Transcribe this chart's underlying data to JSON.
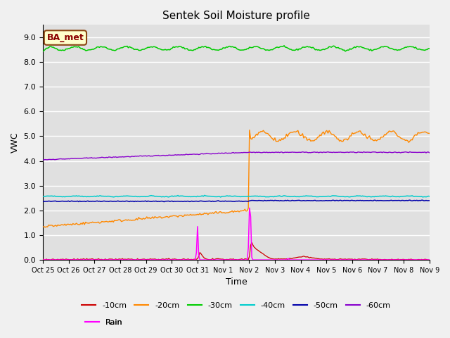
{
  "title": "Sentek Soil Moisture profile",
  "xlabel": "Time",
  "ylabel": "VWC",
  "ylim": [
    0.0,
    9.5
  ],
  "yticks": [
    0.0,
    1.0,
    2.0,
    3.0,
    4.0,
    5.0,
    6.0,
    7.0,
    8.0,
    9.0
  ],
  "xlim": [
    0,
    15
  ],
  "colors": {
    "-10cm": "#cc0000",
    "-20cm": "#ff8800",
    "-30cm": "#00cc00",
    "-40cm": "#00cccc",
    "-50cm": "#0000aa",
    "-60cm": "#8800cc",
    "Rain": "#ff00ff"
  },
  "legend_label": "BA_met",
  "n_points": 336,
  "tick_labels": [
    "Oct 25",
    "Oct 26",
    "Oct 27",
    "Oct 28",
    "Oct 29",
    "Oct 30",
    "Oct 31",
    "Nov 1",
    "Nov 2",
    "Nov 3",
    "Nov 4",
    "Nov 5",
    "Nov 6",
    "Nov 7",
    "Nov 8",
    "Nov 9"
  ],
  "bg_color": "#e0e0e0",
  "fig_bg": "#f0f0f0"
}
